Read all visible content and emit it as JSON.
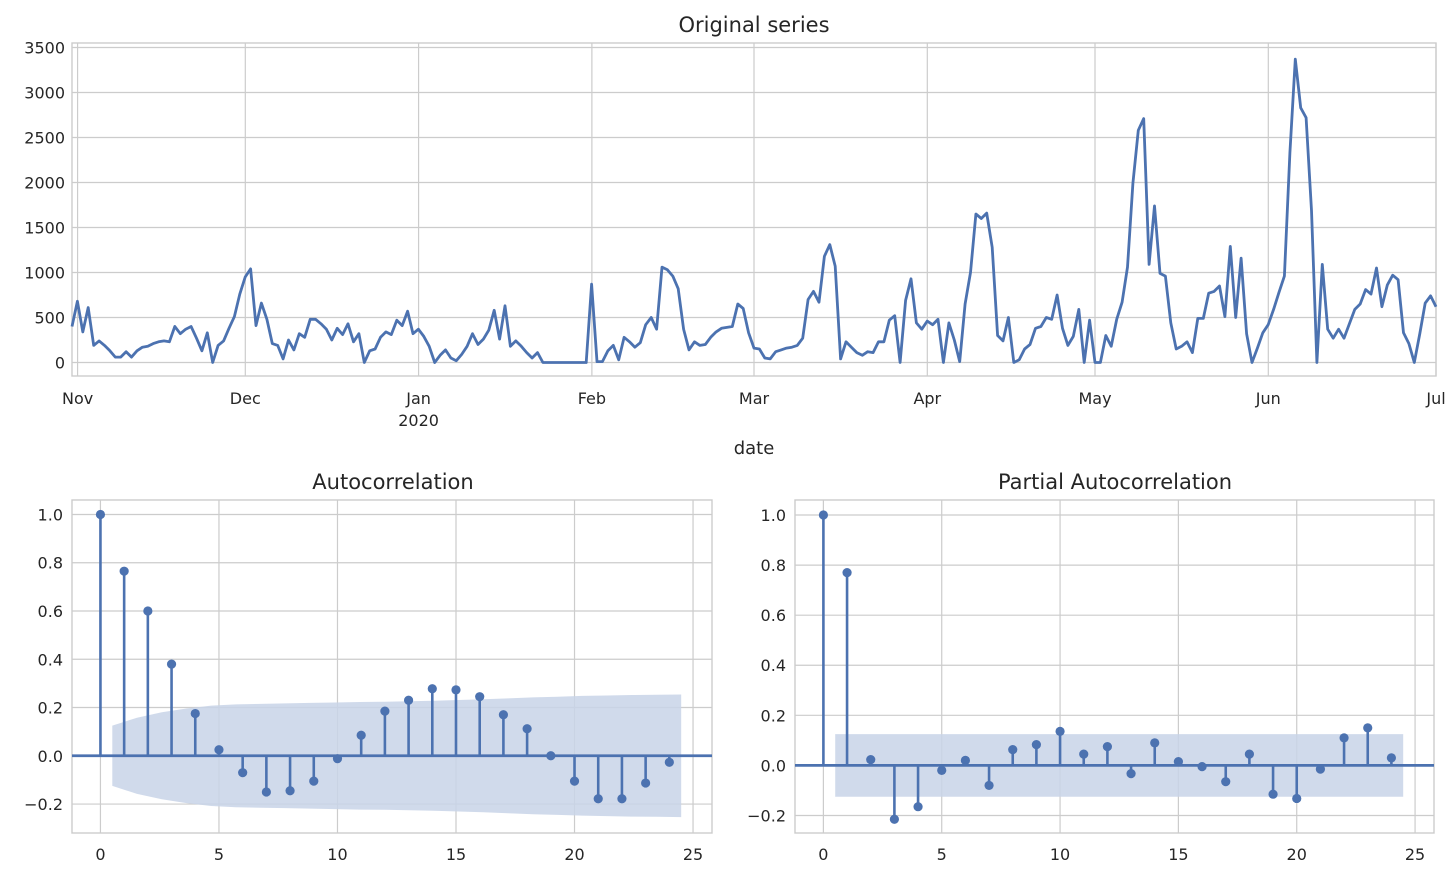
{
  "chart_data": [
    {
      "type": "line",
      "title": "Original series",
      "xlabel": "date",
      "ylabel": "",
      "ylim": [
        -150,
        3550
      ],
      "yticks": [
        "0",
        "500",
        "1000",
        "1500",
        "2000",
        "2500",
        "3000",
        "3500"
      ],
      "xtick_labels": [
        "Nov",
        "Dec",
        "Jan",
        "Feb",
        "Mar",
        "Apr",
        "May",
        "Jun",
        "Jul"
      ],
      "xtick_sublabel": "2020",
      "x_start": "2019-10-31",
      "x_end": "2020-07-01",
      "grid": true,
      "color": "#4c72b0",
      "series": [
        {
          "values": [
            400,
            680,
            340,
            610,
            190,
            240,
            190,
            130,
            60,
            60,
            120,
            60,
            130,
            170,
            180,
            210,
            230,
            240,
            230,
            400,
            320,
            370,
            400,
            270,
            130,
            330,
            0,
            190,
            240,
            380,
            510,
            760,
            950,
            1040,
            410,
            660,
            480,
            210,
            190,
            40,
            250,
            140,
            320,
            280,
            480,
            480,
            430,
            370,
            250,
            380,
            310,
            430,
            230,
            320,
            0,
            130,
            150,
            280,
            340,
            310,
            470,
            410,
            570,
            320,
            370,
            290,
            180,
            0,
            80,
            140,
            50,
            20,
            90,
            180,
            320,
            200,
            260,
            360,
            580,
            260,
            630,
            180,
            240,
            180,
            110,
            50,
            110,
            0,
            0,
            0,
            0,
            0,
            0,
            0,
            0,
            0,
            870,
            10,
            10,
            130,
            190,
            30,
            280,
            230,
            170,
            220,
            420,
            500,
            370,
            1060,
            1030,
            960,
            820,
            370,
            140,
            230,
            190,
            200,
            280,
            340,
            380,
            390,
            400,
            650,
            600,
            330,
            160,
            150,
            50,
            40,
            120,
            140,
            160,
            170,
            190,
            270,
            700,
            790,
            670,
            1180,
            1310,
            1070,
            40,
            230,
            170,
            110,
            80,
            120,
            110,
            230,
            230,
            470,
            520,
            0,
            690,
            930,
            440,
            370,
            460,
            420,
            480,
            0,
            440,
            250,
            10,
            650,
            1000,
            1650,
            1600,
            1660,
            1280,
            300,
            240,
            500,
            0,
            30,
            150,
            200,
            380,
            400,
            500,
            480,
            750,
            380,
            190,
            290,
            590,
            0,
            470,
            0,
            0,
            300,
            180,
            480,
            670,
            1060,
            1990,
            2580,
            2710,
            1090,
            1740,
            990,
            960,
            440,
            150,
            180,
            230,
            110,
            490,
            490,
            770,
            790,
            850,
            510,
            1290,
            500,
            1160,
            320,
            0,
            160,
            330,
            420,
            590,
            780,
            960,
            2330,
            3370,
            2830,
            2720,
            1690,
            0,
            1090,
            370,
            270,
            370,
            270,
            430,
            590,
            650,
            810,
            760,
            1050,
            620,
            860,
            970,
            920,
            330,
            210,
            0,
            320,
            660,
            740,
            620
          ]
        }
      ]
    },
    {
      "type": "stem",
      "title": "Autocorrelation",
      "xlabel": "",
      "ylabel": "",
      "xlim": [
        -1.2,
        25.8
      ],
      "ylim": [
        -0.32,
        1.06
      ],
      "xticks": [
        "0",
        "5",
        "10",
        "15",
        "20",
        "25"
      ],
      "yticks": [
        "−0.2",
        "0.0",
        "0.2",
        "0.4",
        "0.6",
        "0.8",
        "1.0"
      ],
      "grid": true,
      "color": "#4c72b0",
      "band_color": "#c8d3e7",
      "lags": [
        0,
        1,
        2,
        3,
        4,
        5,
        6,
        7,
        8,
        9,
        10,
        11,
        12,
        13,
        14,
        15,
        16,
        17,
        18,
        19,
        20,
        21,
        22,
        23,
        24
      ],
      "values": [
        1.0,
        0.765,
        0.6,
        0.38,
        0.175,
        0.025,
        -0.07,
        -0.15,
        -0.145,
        -0.105,
        -0.012,
        0.085,
        0.185,
        0.23,
        0.278,
        0.273,
        0.245,
        0.17,
        0.112,
        0.0,
        -0.105,
        -0.178,
        -0.178,
        -0.113,
        -0.027
      ],
      "conf_band": [
        0.125,
        0.158,
        0.18,
        0.196,
        0.208,
        0.213,
        0.215,
        0.217,
        0.219,
        0.221,
        0.223,
        0.224,
        0.226,
        0.228,
        0.231,
        0.234,
        0.238,
        0.242,
        0.245,
        0.248,
        0.25,
        0.252,
        0.253,
        0.254
      ]
    },
    {
      "type": "stem",
      "title": "Partial Autocorrelation",
      "xlabel": "",
      "ylabel": "",
      "xlim": [
        -1.2,
        25.8
      ],
      "ylim": [
        -0.27,
        1.06
      ],
      "xticks": [
        "0",
        "5",
        "10",
        "15",
        "20",
        "25"
      ],
      "yticks": [
        "−0.2",
        "0.0",
        "0.2",
        "0.4",
        "0.6",
        "0.8",
        "1.0"
      ],
      "grid": true,
      "color": "#4c72b0",
      "band_color": "#c8d3e7",
      "lags": [
        0,
        1,
        2,
        3,
        4,
        5,
        6,
        7,
        8,
        9,
        10,
        11,
        12,
        13,
        14,
        15,
        16,
        17,
        18,
        19,
        20,
        21,
        22,
        23,
        24
      ],
      "values": [
        1.0,
        0.77,
        0.023,
        -0.215,
        -0.165,
        -0.02,
        0.02,
        -0.08,
        0.063,
        0.083,
        0.136,
        0.045,
        0.075,
        -0.033,
        0.09,
        0.015,
        -0.005,
        -0.065,
        0.045,
        -0.115,
        -0.132,
        -0.015,
        0.11,
        0.15,
        0.03
      ],
      "conf_band": [
        0.125,
        0.125,
        0.125,
        0.125,
        0.125,
        0.125,
        0.125,
        0.125,
        0.125,
        0.125,
        0.125,
        0.125,
        0.125,
        0.125,
        0.125,
        0.125,
        0.125,
        0.125,
        0.125,
        0.125,
        0.125,
        0.125,
        0.125,
        0.125
      ]
    }
  ]
}
